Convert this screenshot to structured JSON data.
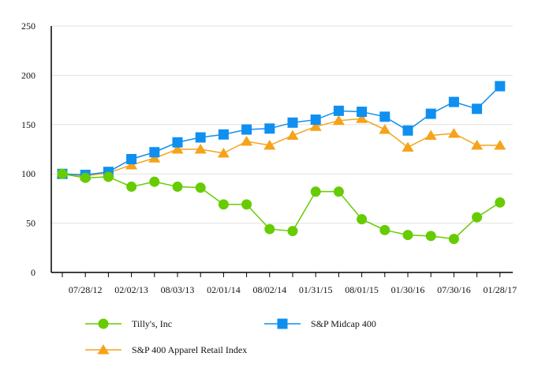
{
  "chart_data": {
    "type": "line",
    "title": "",
    "xlabel": "",
    "ylabel": "",
    "ylim": [
      0,
      250
    ],
    "yticks": [
      "0",
      "50",
      "100",
      "150",
      "200",
      "250"
    ],
    "grid": true,
    "legend_placement": "bottom",
    "x": [
      "",
      "07/28/12",
      "",
      "02/02/13",
      "",
      "08/03/13",
      "",
      "02/01/14",
      "",
      "08/02/14",
      "",
      "01/31/15",
      "",
      "08/01/15",
      "",
      "01/30/16",
      "",
      "07/30/16",
      "",
      "01/28/17"
    ],
    "series": [
      {
        "name": "Tilly's, Inc",
        "color": "#66cc00",
        "marker": "circle",
        "values": [
          100,
          96,
          97,
          87,
          92,
          87,
          86,
          69,
          69,
          44,
          42,
          82,
          82,
          54,
          43,
          38,
          37,
          34,
          56,
          71
        ]
      },
      {
        "name": "S&P Midcap 400",
        "color": "#0f8ff0",
        "marker": "square",
        "values": [
          100,
          99,
          102,
          115,
          122,
          132,
          137,
          140,
          145,
          146,
          152,
          155,
          164,
          163,
          158,
          144,
          161,
          173,
          166,
          189
        ]
      },
      {
        "name": "S&P 400 Apparel Retail Index",
        "color": "#f5a31a",
        "marker": "triangle",
        "values": [
          100,
          98,
          101,
          109,
          116,
          125,
          125,
          121,
          133,
          129,
          139,
          148,
          154,
          156,
          145,
          127,
          139,
          141,
          129,
          129
        ]
      }
    ]
  }
}
